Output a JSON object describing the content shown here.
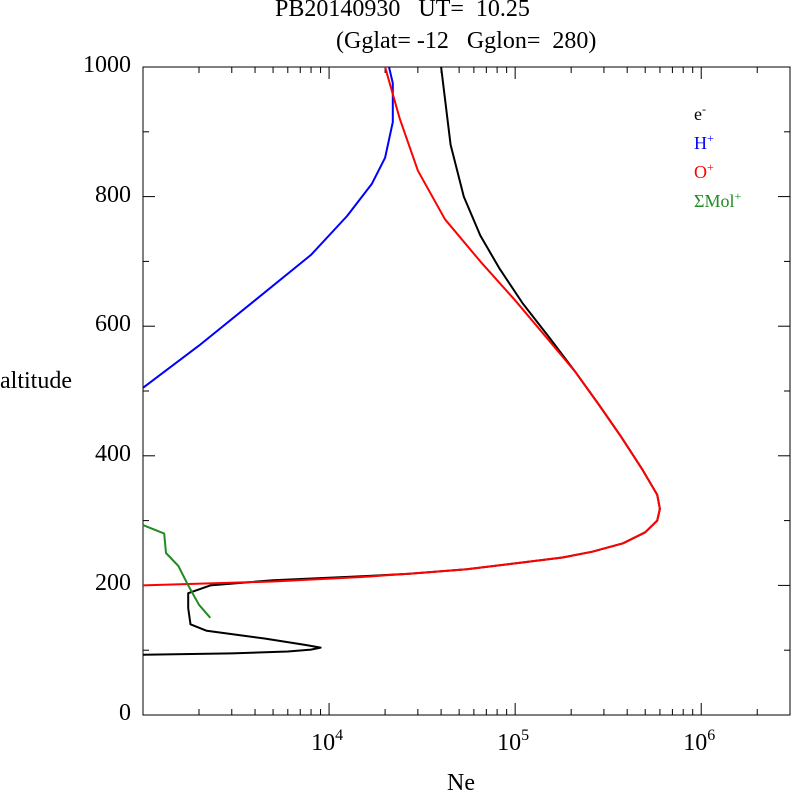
{
  "title_line1": "PB20140930   UT=  10.25",
  "title_line2": "(Gglat= -12   Gglon=  280)",
  "chart_data": {
    "type": "line",
    "xlabel": "Ne",
    "ylabel": "altitude",
    "x_scale": "log",
    "xlim": [
      1000,
      3000000
    ],
    "ylim": [
      0,
      1000
    ],
    "grid": false,
    "legend_position": "top-right",
    "y_ticks": [
      "0",
      "200",
      "400",
      "600",
      "800",
      "1000"
    ],
    "x_ticks": [
      {
        "base": "10",
        "exp": "4",
        "value": 10000
      },
      {
        "base": "10",
        "exp": "5",
        "value": 100000
      },
      {
        "base": "10",
        "exp": "6",
        "value": 1000000
      }
    ],
    "series": [
      {
        "name": "e",
        "sup": "-",
        "color": "#000000",
        "points": [
          [
            1000,
            93
          ],
          [
            3000,
            95
          ],
          [
            6000,
            98
          ],
          [
            8000,
            101
          ],
          [
            9000,
            104
          ],
          [
            7500,
            108
          ],
          [
            4500,
            118
          ],
          [
            2200,
            130
          ],
          [
            1800,
            140
          ],
          [
            1750,
            165
          ],
          [
            1750,
            188
          ],
          [
            2300,
            200
          ],
          [
            5000,
            208
          ],
          [
            15000,
            214
          ],
          [
            27000,
            218
          ],
          [
            55000,
            225
          ],
          [
            100000,
            234
          ],
          [
            180000,
            243
          ],
          [
            260000,
            252
          ],
          [
            380000,
            265
          ],
          [
            500000,
            282
          ],
          [
            580000,
            300
          ],
          [
            600000,
            318
          ],
          [
            580000,
            340
          ],
          [
            480000,
            380
          ],
          [
            370000,
            430
          ],
          [
            280000,
            480
          ],
          [
            210000,
            530
          ],
          [
            155000,
            580
          ],
          [
            110000,
            635
          ],
          [
            82000,
            690
          ],
          [
            65000,
            740
          ],
          [
            53000,
            800
          ],
          [
            45000,
            880
          ],
          [
            40000,
            1000
          ]
        ]
      },
      {
        "name": "H",
        "sup": "+",
        "color": "#0000ff",
        "points": [
          [
            1000,
            505
          ],
          [
            2000,
            570
          ],
          [
            4000,
            640
          ],
          [
            8000,
            710
          ],
          [
            12500,
            770
          ],
          [
            17000,
            820
          ],
          [
            20000,
            860
          ],
          [
            22000,
            915
          ],
          [
            22000,
            975
          ],
          [
            21000,
            1000
          ]
        ]
      },
      {
        "name": "O",
        "sup": "+",
        "color": "#ff0000",
        "points": [
          [
            1000,
            200
          ],
          [
            5000,
            206
          ],
          [
            15000,
            213
          ],
          [
            27000,
            218
          ],
          [
            55000,
            225
          ],
          [
            100000,
            234
          ],
          [
            180000,
            243
          ],
          [
            260000,
            252
          ],
          [
            380000,
            265
          ],
          [
            500000,
            282
          ],
          [
            580000,
            300
          ],
          [
            600000,
            318
          ],
          [
            580000,
            340
          ],
          [
            480000,
            380
          ],
          [
            370000,
            430
          ],
          [
            280000,
            480
          ],
          [
            210000,
            530
          ],
          [
            150000,
            580
          ],
          [
            100000,
            640
          ],
          [
            65000,
            700
          ],
          [
            42000,
            765
          ],
          [
            30000,
            840
          ],
          [
            24000,
            920
          ],
          [
            20000,
            1000
          ]
        ]
      },
      {
        "name": "ΣMol",
        "sup": "+",
        "color": "#228b22",
        "points": [
          [
            1000,
            293
          ],
          [
            1300,
            280
          ],
          [
            1330,
            250
          ],
          [
            1550,
            230
          ],
          [
            1750,
            200
          ],
          [
            2000,
            170
          ],
          [
            2300,
            150
          ]
        ]
      }
    ]
  }
}
